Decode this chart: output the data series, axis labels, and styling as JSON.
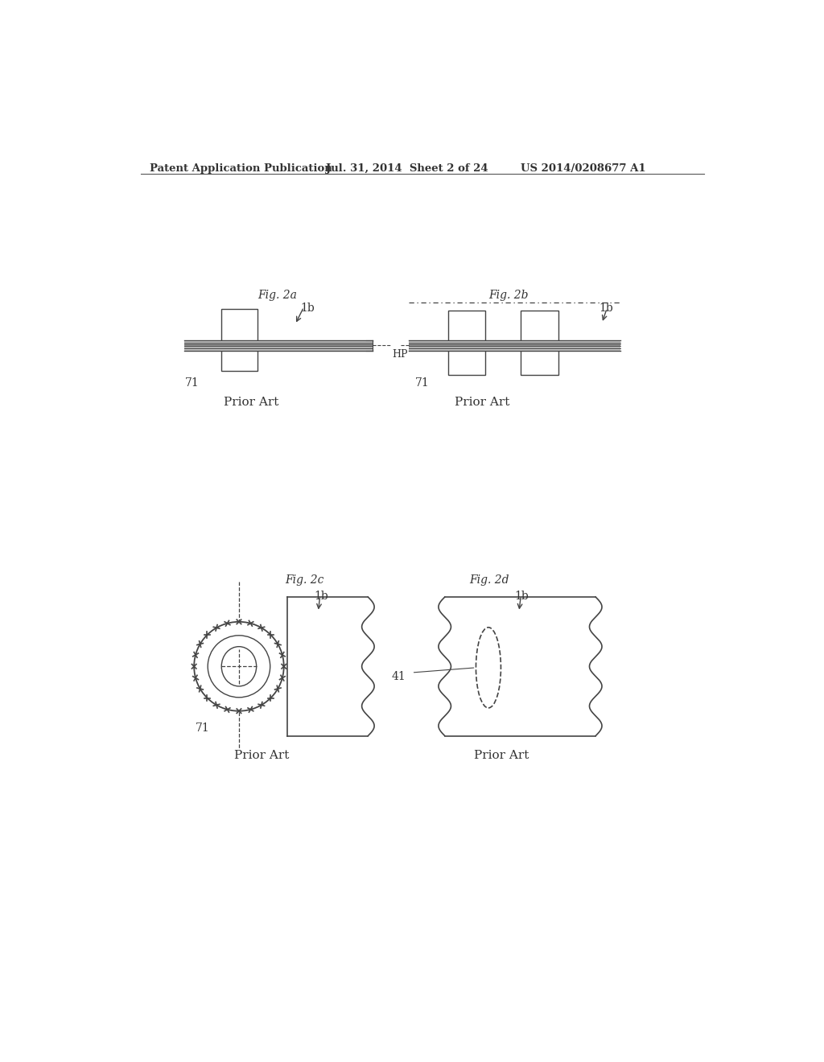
{
  "bg_color": "#ffffff",
  "header_text": "Patent Application Publication",
  "header_date": "Jul. 31, 2014  Sheet 2 of 24",
  "header_patent": "US 2014/0208677 A1",
  "fig2a_label": "Fig. 2a",
  "fig2b_label": "Fig. 2b",
  "fig2c_label": "Fig. 2c",
  "fig2d_label": "Fig. 2d",
  "prior_art": "Prior Art",
  "label_1b": "1b",
  "label_71": "71",
  "label_HP": "HP",
  "label_41": "41",
  "line_color": "#444444",
  "text_color": "#333333"
}
